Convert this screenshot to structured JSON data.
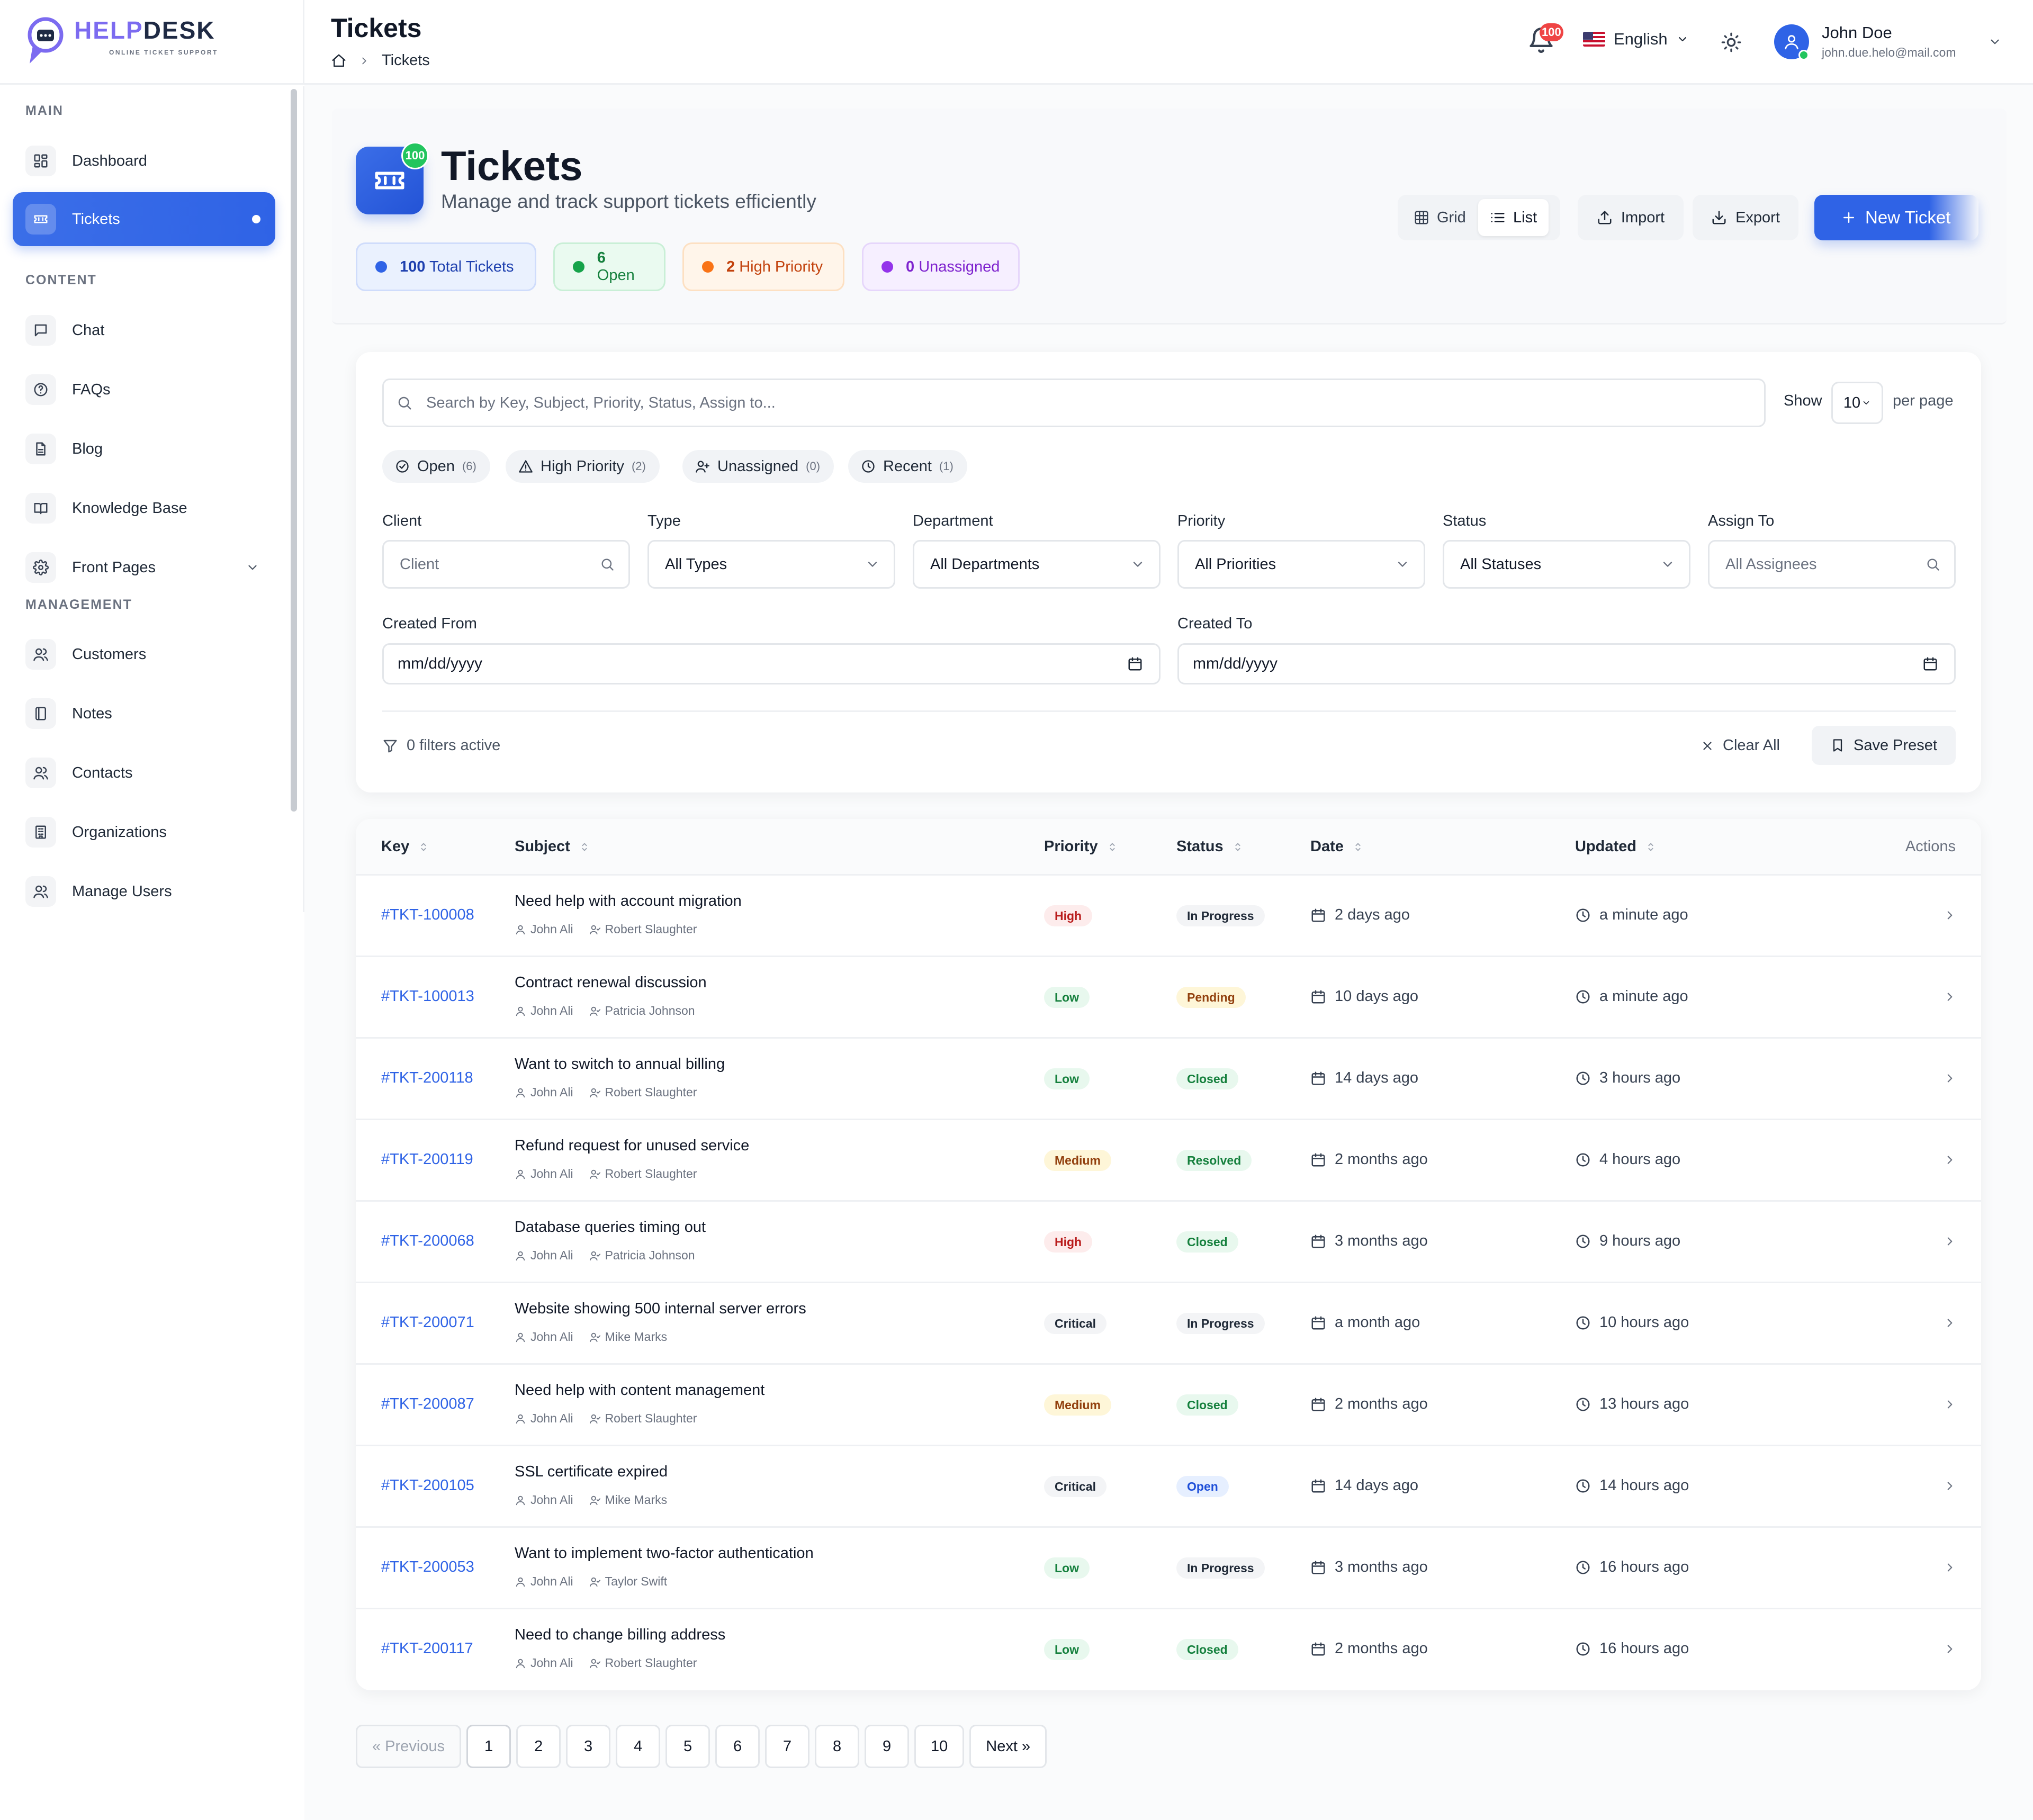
{
  "brand": {
    "name_part1": "HELP",
    "name_part2": "DESK",
    "tagline": "ONLINE TICKET SUPPORT"
  },
  "sidebar": {
    "sections": [
      {
        "label": "MAIN",
        "items": [
          {
            "label": "Dashboard",
            "icon": "dashboard-icon"
          },
          {
            "label": "Tickets",
            "icon": "ticket-icon",
            "active": true
          }
        ]
      },
      {
        "label": "CONTENT",
        "items": [
          {
            "label": "Chat",
            "icon": "chat-icon"
          },
          {
            "label": "FAQs",
            "icon": "help-circle-icon"
          },
          {
            "label": "Blog",
            "icon": "document-icon"
          },
          {
            "label": "Knowledge Base",
            "icon": "book-icon"
          },
          {
            "label": "Front Pages",
            "icon": "gear-icon",
            "expandable": true
          }
        ]
      },
      {
        "label": "MANAGEMENT",
        "items": [
          {
            "label": "Customers",
            "icon": "users-icon"
          },
          {
            "label": "Notes",
            "icon": "notebook-icon"
          },
          {
            "label": "Contacts",
            "icon": "users-icon"
          },
          {
            "label": "Organizations",
            "icon": "building-icon"
          },
          {
            "label": "Manage Users",
            "icon": "users-icon"
          }
        ]
      }
    ]
  },
  "header": {
    "title": "Tickets",
    "breadcrumb_current": "Tickets",
    "notifications_count": "100",
    "language": "English",
    "user": {
      "name": "John Doe",
      "email": "john.due.helo@mail.com"
    }
  },
  "page": {
    "title": "Tickets",
    "subtitle": "Manage and track support tickets efficiently",
    "icon_badge": "100",
    "stats": [
      {
        "value": "100",
        "label": "Total Tickets",
        "color": "#2f63e6",
        "text": "#1e40af",
        "bg": "#eaf1fe",
        "border": "#cfdcfb"
      },
      {
        "value": "6",
        "label": "Open",
        "color": "#16a34a",
        "text": "#15803d",
        "bg": "#eafaf0",
        "border": "#c9efd6"
      },
      {
        "value": "2",
        "label": "High Priority",
        "color": "#f97316",
        "text": "#c2410c",
        "bg": "#fff5ea",
        "border": "#fde0c2"
      },
      {
        "value": "0",
        "label": "Unassigned",
        "color": "#9333ea",
        "text": "#7e22ce",
        "bg": "#f6efff",
        "border": "#e6d6fb"
      }
    ],
    "view_grid": "Grid",
    "view_list": "List",
    "import": "Import",
    "export": "Export",
    "new_ticket": "New Ticket"
  },
  "filters": {
    "search_placeholder": "Search by Key, Subject, Priority, Status, Assign to...",
    "show_label": "Show",
    "per_page_value": "10",
    "per_page_label": "per page",
    "quick": [
      {
        "label": "Open",
        "count": "(6)",
        "icon": "check-circle-icon"
      },
      {
        "label": "High Priority",
        "count": "(2)",
        "icon": "alert-triangle-icon"
      },
      {
        "label": "Unassigned",
        "count": "(0)",
        "icon": "user-plus-icon"
      },
      {
        "label": "Recent",
        "count": "(1)",
        "icon": "clock-icon"
      }
    ],
    "fields": [
      {
        "label": "Client",
        "value": "Client",
        "placeholder": true,
        "kind": "search"
      },
      {
        "label": "Type",
        "value": "All Types",
        "kind": "select"
      },
      {
        "label": "Department",
        "value": "All Departments",
        "kind": "select"
      },
      {
        "label": "Priority",
        "value": "All Priorities",
        "kind": "select"
      },
      {
        "label": "Status",
        "value": "All Statuses",
        "kind": "select"
      },
      {
        "label": "Assign To",
        "value": "All Assignees",
        "placeholder": true,
        "kind": "search"
      }
    ],
    "created_from_label": "Created From",
    "created_from_value": "mm/dd/yyyy",
    "created_to_label": "Created To",
    "created_to_value": "mm/dd/yyyy",
    "active_text": "0 filters active",
    "clear_all": "Clear All",
    "save_preset": "Save Preset"
  },
  "table": {
    "headers": {
      "key": "Key",
      "subject": "Subject",
      "priority": "Priority",
      "status": "Status",
      "date": "Date",
      "updated": "Updated",
      "actions": "Actions"
    },
    "rows": [
      {
        "key": "#TKT-100008",
        "subject": "Need help with account migration",
        "client": "John Ali",
        "assignee": "Robert Slaughter",
        "priority": "High",
        "status": "In Progress",
        "date": "2 days ago",
        "updated": "a minute ago"
      },
      {
        "key": "#TKT-100013",
        "subject": "Contract renewal discussion",
        "client": "John Ali",
        "assignee": "Patricia Johnson",
        "priority": "Low",
        "status": "Pending",
        "date": "10 days ago",
        "updated": "a minute ago"
      },
      {
        "key": "#TKT-200118",
        "subject": "Want to switch to annual billing",
        "client": "John Ali",
        "assignee": "Robert Slaughter",
        "priority": "Low",
        "status": "Closed",
        "date": "14 days ago",
        "updated": "3 hours ago"
      },
      {
        "key": "#TKT-200119",
        "subject": "Refund request for unused service",
        "client": "John Ali",
        "assignee": "Robert Slaughter",
        "priority": "Medium",
        "status": "Resolved",
        "date": "2 months ago",
        "updated": "4 hours ago"
      },
      {
        "key": "#TKT-200068",
        "subject": "Database queries timing out",
        "client": "John Ali",
        "assignee": "Patricia Johnson",
        "priority": "High",
        "status": "Closed",
        "date": "3 months ago",
        "updated": "9 hours ago"
      },
      {
        "key": "#TKT-200071",
        "subject": "Website showing 500 internal server errors",
        "client": "John Ali",
        "assignee": "Mike Marks",
        "priority": "Critical",
        "status": "In Progress",
        "date": "a month ago",
        "updated": "10 hours ago"
      },
      {
        "key": "#TKT-200087",
        "subject": "Need help with content management",
        "client": "John Ali",
        "assignee": "Robert Slaughter",
        "priority": "Medium",
        "status": "Closed",
        "date": "2 months ago",
        "updated": "13 hours ago"
      },
      {
        "key": "#TKT-200105",
        "subject": "SSL certificate expired",
        "client": "John Ali",
        "assignee": "Mike Marks",
        "priority": "Critical",
        "status": "Open",
        "date": "14 days ago",
        "updated": "14 hours ago"
      },
      {
        "key": "#TKT-200053",
        "subject": "Want to implement two-factor authentication",
        "client": "John Ali",
        "assignee": "Taylor Swift",
        "priority": "Low",
        "status": "In Progress",
        "date": "3 months ago",
        "updated": "16 hours ago"
      },
      {
        "key": "#TKT-200117",
        "subject": "Need to change billing address",
        "client": "John Ali",
        "assignee": "Robert Slaughter",
        "priority": "Low",
        "status": "Closed",
        "date": "2 months ago",
        "updated": "16 hours ago"
      }
    ],
    "priority_colors": {
      "High": {
        "bg": "#fdecec",
        "fg": "#b91c1c"
      },
      "Low": {
        "bg": "#e8f8ee",
        "fg": "#15803d"
      },
      "Medium": {
        "bg": "#fef6d8",
        "fg": "#92400e"
      },
      "Critical": {
        "bg": "#f3f4f6",
        "fg": "#1f2937"
      }
    },
    "status_colors": {
      "In Progress": {
        "bg": "#f3f4f6",
        "fg": "#1f2937"
      },
      "Pending": {
        "bg": "#fef6d8",
        "fg": "#92400e"
      },
      "Closed": {
        "bg": "#e8f8ee",
        "fg": "#15803d"
      },
      "Resolved": {
        "bg": "#e8f8ee",
        "fg": "#15803d"
      },
      "Open": {
        "bg": "#e6efff",
        "fg": "#1d4ed8"
      }
    }
  },
  "pagination": {
    "previous": "« Previous",
    "pages": [
      "1",
      "2",
      "3",
      "4",
      "5",
      "6",
      "7",
      "8",
      "9",
      "10"
    ],
    "current": "1",
    "next": "Next »"
  }
}
